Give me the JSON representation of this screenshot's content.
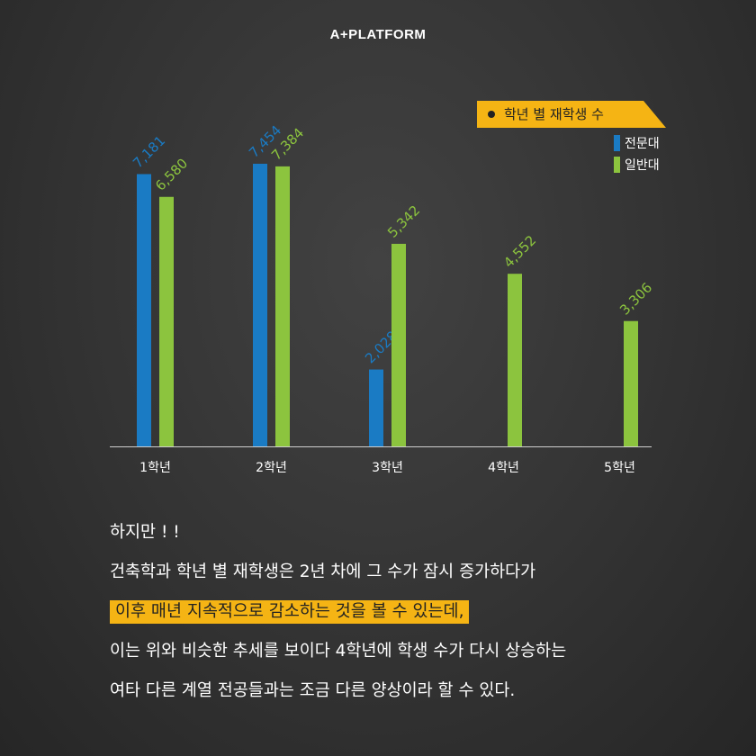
{
  "brand": "A+PLATFORM",
  "legend": {
    "title": "학년 별 재학생 수",
    "items": [
      {
        "label": "전문대",
        "color": "#1a7bc4"
      },
      {
        "label": "일반대",
        "color": "#8cc43e"
      }
    ]
  },
  "chart_data": {
    "type": "bar",
    "categories": [
      "1학년",
      "2학년",
      "3학년",
      "4학년",
      "5학년"
    ],
    "series": [
      {
        "name": "전문대",
        "color": "#1a7bc4",
        "values": [
          7181,
          7454,
          2028,
          null,
          null
        ]
      },
      {
        "name": "일반대",
        "color": "#8cc43e",
        "values": [
          6580,
          7384,
          5342,
          4552,
          3306
        ]
      }
    ],
    "title": "학년 별 재학생 수",
    "xlabel": "",
    "ylabel": "",
    "ylim": [
      0,
      7500
    ],
    "grid": false,
    "legend_position": "top-right"
  },
  "text": {
    "lines": [
      "하지만 ! !",
      "건축학과 학년 별 재학생은 2년 차에 그 수가 잠시 증가하다가",
      "이후 매년 지속적으로 감소하는 것을 볼 수 있는데,",
      "이는 위와 비슷한 추세를 보이다 4학년에 학생 수가 다시 상승하는",
      "여타 다른 계열 전공들과는 조금 다른 양상이라 할 수 있다."
    ]
  }
}
